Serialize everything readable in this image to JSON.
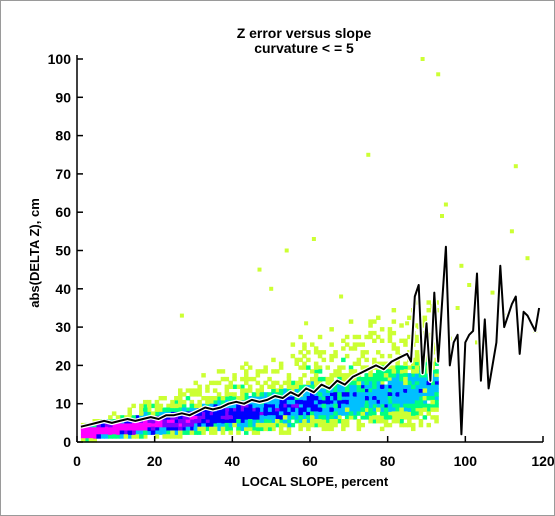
{
  "chart_data": {
    "type": "scatter",
    "title": "Z error versus slope",
    "subtitle": "curvature < = 5",
    "xlabel": "LOCAL SLOPE, percent",
    "ylabel": "abs(DELTA Z), cm",
    "xlim": [
      0,
      120
    ],
    "ylim": [
      0,
      100
    ],
    "x_ticks": [
      0,
      20,
      40,
      60,
      80,
      100,
      120
    ],
    "y_ticks": [
      0,
      10,
      20,
      30,
      40,
      50,
      60,
      70,
      80,
      90,
      100
    ],
    "grid": false,
    "legend": "none",
    "density_colors": [
      "#ff00ff",
      "#8000ff",
      "#0000ff",
      "#00c0ff",
      "#00ff80",
      "#ccff33"
    ],
    "series": [
      {
        "type": "line",
        "color": "#000000",
        "x": [
          1,
          3,
          5,
          7,
          9,
          11,
          13,
          15,
          17,
          19,
          21,
          23,
          25,
          27,
          29,
          31,
          33,
          35,
          37,
          39,
          41,
          43,
          45,
          47,
          49,
          51,
          53,
          55,
          57,
          59,
          61,
          63,
          65,
          67,
          69,
          71,
          73,
          75,
          77,
          79,
          81,
          83,
          85,
          86,
          87,
          88,
          89,
          90,
          91,
          92,
          93,
          94,
          95,
          96,
          97,
          98,
          99,
          100,
          101,
          102,
          103,
          104,
          105,
          106,
          107,
          108,
          109,
          110,
          111,
          112,
          113,
          114,
          115,
          116,
          117,
          118,
          119
        ],
        "y": [
          4,
          4.5,
          5,
          5.5,
          5,
          5.5,
          6,
          5.5,
          6,
          6.5,
          6,
          7,
          7,
          7.5,
          7,
          8,
          9,
          8.5,
          9,
          10,
          10.5,
          10,
          11,
          10.5,
          11,
          12,
          11.5,
          13,
          12,
          14,
          13,
          15,
          14,
          16,
          15,
          17,
          18,
          19,
          20,
          19,
          21,
          22,
          23,
          21,
          38,
          41,
          18,
          31,
          16,
          39,
          21,
          36,
          51,
          20,
          26,
          28,
          2,
          26,
          28,
          29,
          44,
          16,
          32,
          14,
          20,
          26,
          46,
          30,
          33,
          36,
          38,
          23,
          34,
          33,
          31,
          29,
          35
        ]
      }
    ],
    "scatter_outliers": {
      "color": "#ccff33",
      "x": [
        89,
        93,
        95,
        94,
        98,
        101,
        75,
        61,
        54,
        50,
        47,
        27,
        59,
        68,
        113,
        116,
        107,
        110,
        118,
        103,
        99,
        112,
        85,
        88,
        91,
        96,
        104
      ],
      "y": [
        100,
        96,
        62,
        59,
        35,
        41,
        75,
        53,
        50,
        40,
        45,
        33,
        31,
        38,
        72,
        48,
        39,
        33,
        29,
        26,
        46,
        55,
        31,
        30,
        28,
        27,
        24
      ]
    }
  }
}
